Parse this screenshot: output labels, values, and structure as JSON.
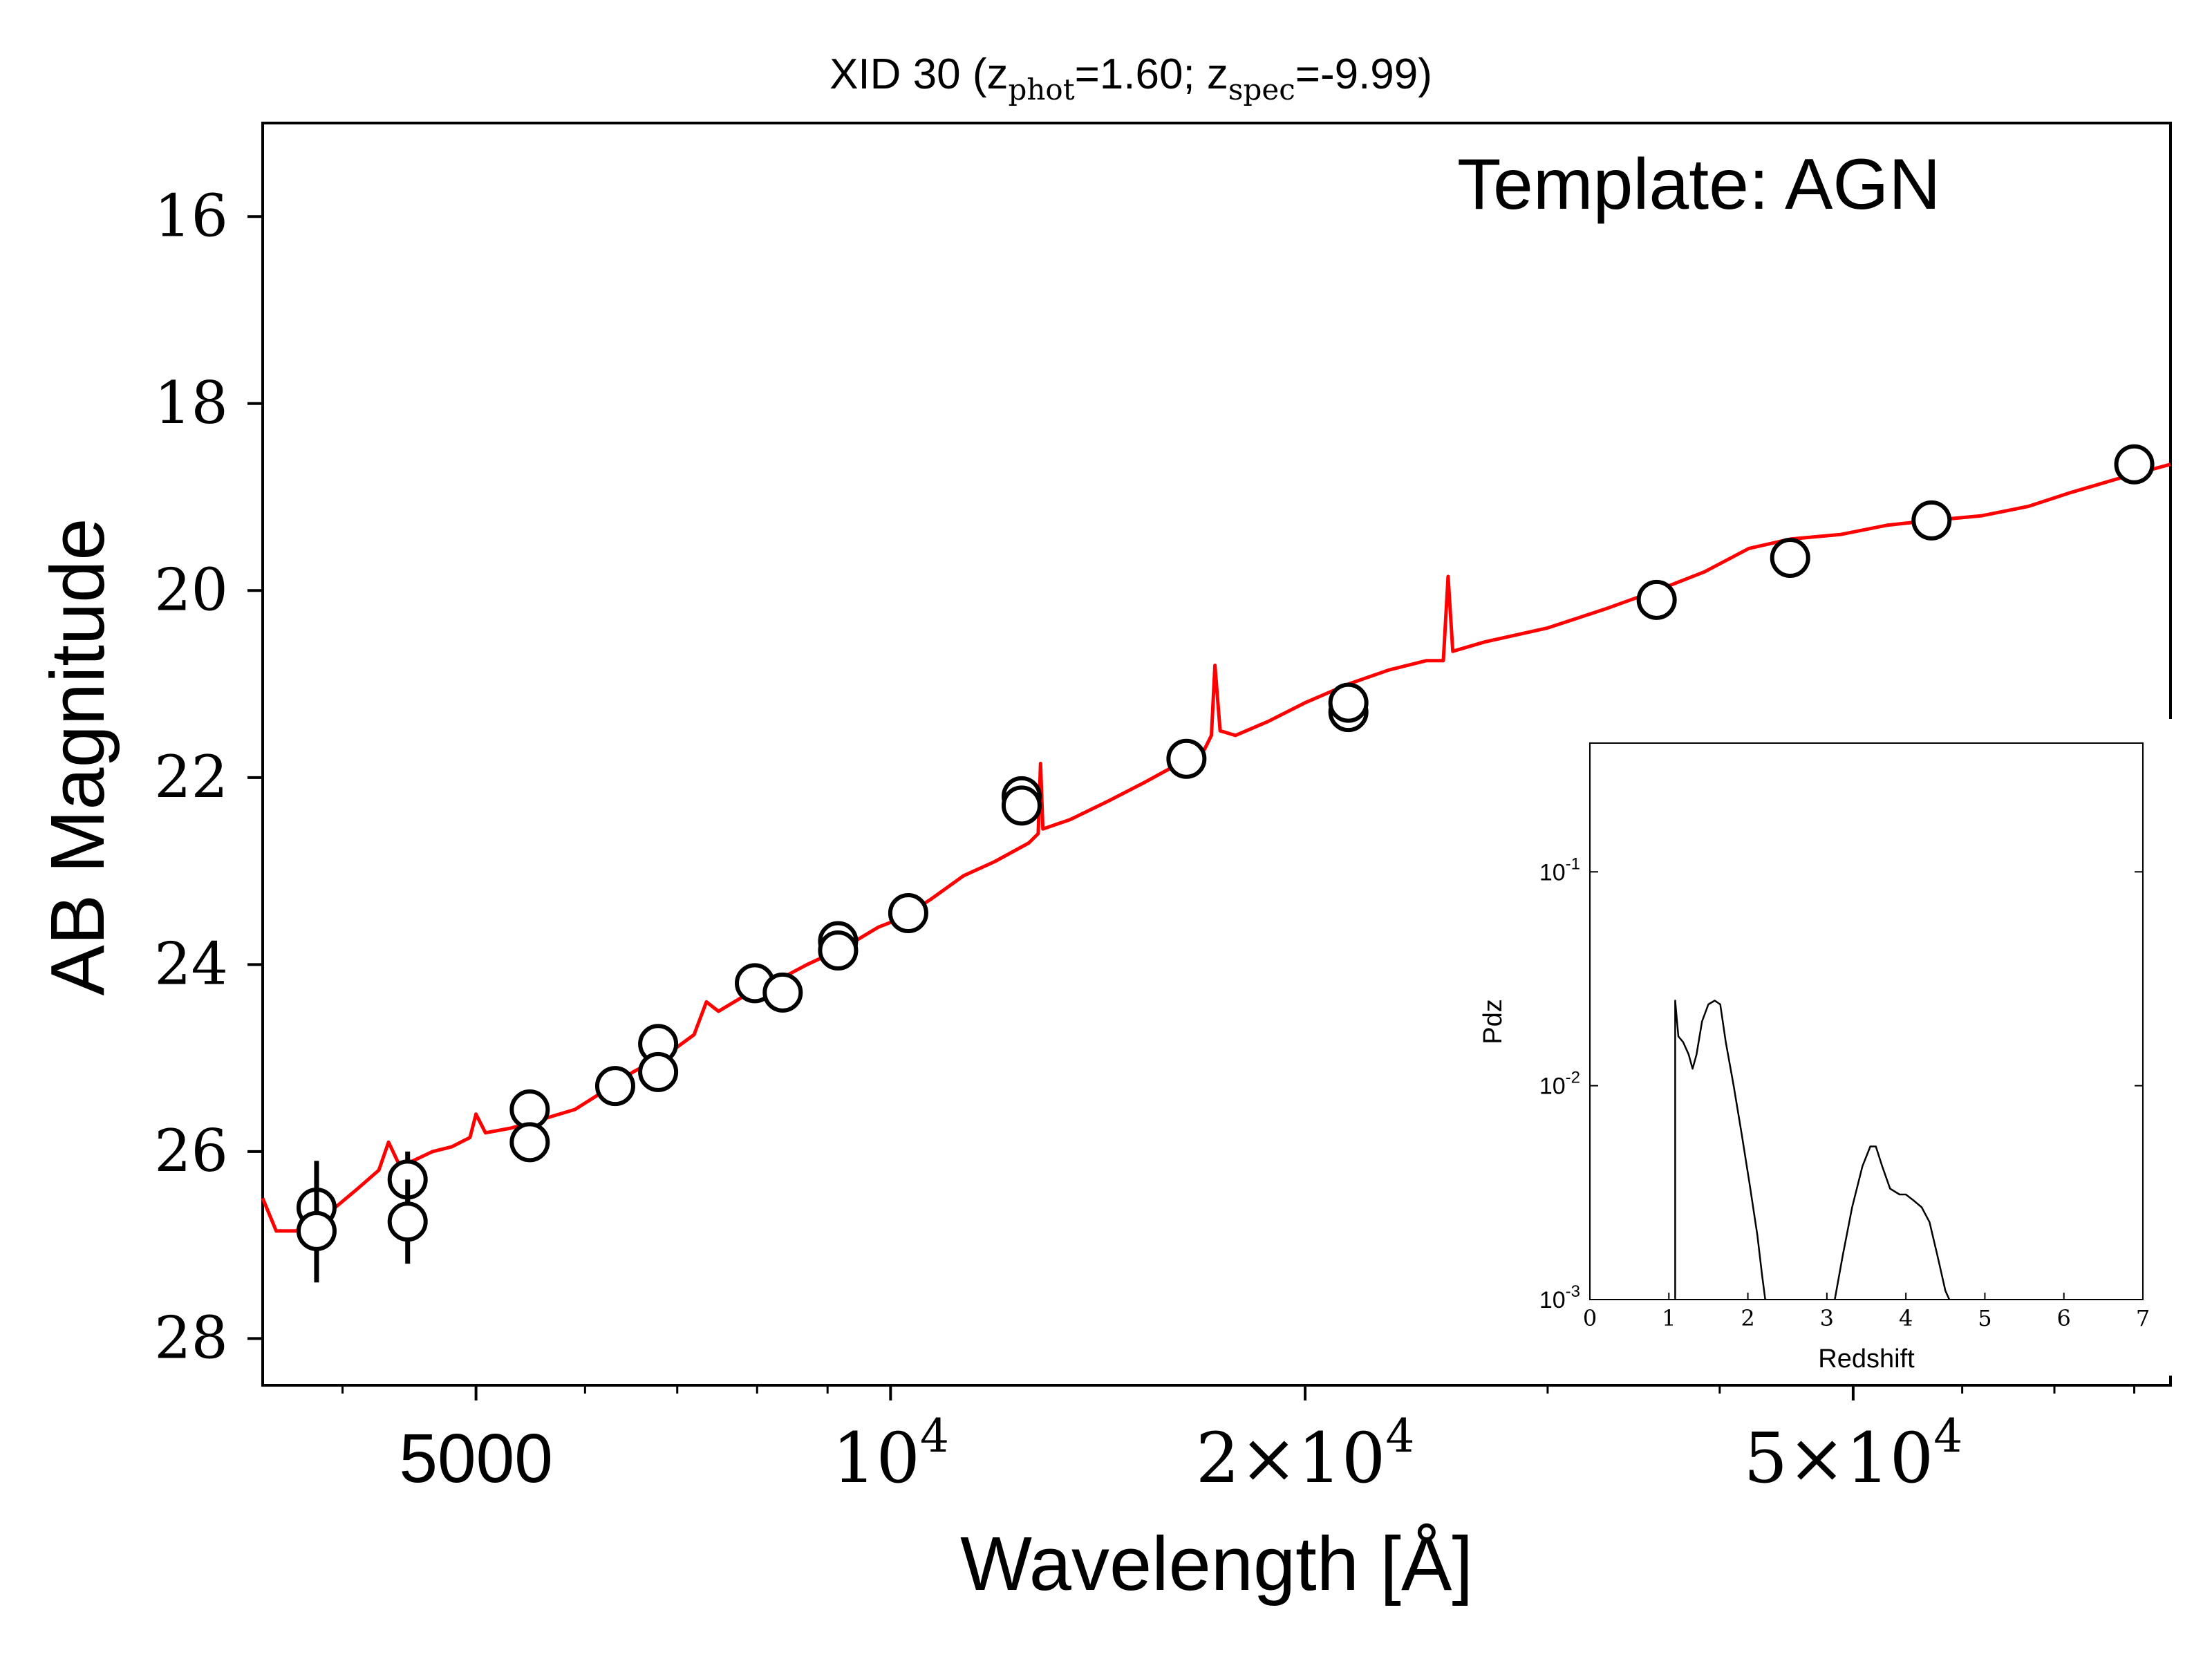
{
  "chart_data": [
    {
      "type": "scatter",
      "title_prefix": "XID 30 (z",
      "title_sub1": "phot",
      "title_mid": "=1.60; z",
      "title_sub2": "spec",
      "title_suffix": "=-9.99)",
      "annotation": "Template: AGN",
      "xlabel": "Wavelength [Å]",
      "ylabel": "AB Magnitude",
      "x_scale": "log",
      "xlim": [
        3500,
        85000
      ],
      "ylim": [
        28.5,
        15
      ],
      "y_inverted": true,
      "yticks": [
        16,
        18,
        20,
        22,
        24,
        26,
        28
      ],
      "ytick_labels": [
        "16",
        "18",
        "20",
        "22",
        "24",
        "26",
        "28"
      ],
      "xticks_major": [
        {
          "value": 5000,
          "label": "5000"
        },
        {
          "value": 10000,
          "label": "10^4"
        },
        {
          "value": 20000,
          "label": "2×10^4"
        },
        {
          "value": 50000,
          "label": "5×10^4"
        }
      ],
      "xticks_minor": [
        4000,
        6000,
        7000,
        8000,
        9000,
        30000,
        40000,
        60000,
        70000,
        80000
      ],
      "series": [
        {
          "kind": "photometry",
          "marker": "open-circle",
          "color": "#000000",
          "points": [
            {
              "x": 3830,
              "y": 26.6,
              "yerr": 0.5
            },
            {
              "x": 3830,
              "y": 26.85,
              "yerr": 0.55
            },
            {
              "x": 4460,
              "y": 26.3,
              "yerr": 0.3
            },
            {
              "x": 4460,
              "y": 26.75,
              "yerr": 0.45
            },
            {
              "x": 5470,
              "y": 25.55,
              "yerr": 0
            },
            {
              "x": 5470,
              "y": 25.9,
              "yerr": 0
            },
            {
              "x": 6310,
              "y": 25.3,
              "yerr": 0
            },
            {
              "x": 6780,
              "y": 24.85,
              "yerr": 0
            },
            {
              "x": 6780,
              "y": 25.15,
              "yerr": 0
            },
            {
              "x": 7970,
              "y": 24.2,
              "yerr": 0
            },
            {
              "x": 8350,
              "y": 24.3,
              "yerr": 0
            },
            {
              "x": 9160,
              "y": 23.75,
              "yerr": 0
            },
            {
              "x": 9160,
              "y": 23.85,
              "yerr": 0
            },
            {
              "x": 10300,
              "y": 23.45,
              "yerr": 0
            },
            {
              "x": 12450,
              "y": 22.2,
              "yerr": 0
            },
            {
              "x": 12450,
              "y": 22.3,
              "yerr": 0
            },
            {
              "x": 16400,
              "y": 21.8,
              "yerr": 0
            },
            {
              "x": 21500,
              "y": 21.3,
              "yerr": 0
            },
            {
              "x": 21500,
              "y": 21.2,
              "yerr": 0
            },
            {
              "x": 36000,
              "y": 20.1,
              "yerr": 0
            },
            {
              "x": 45000,
              "y": 19.65,
              "yerr": 0
            },
            {
              "x": 57000,
              "y": 19.25,
              "yerr": 0
            },
            {
              "x": 80000,
              "y": 18.65,
              "yerr": 0
            }
          ]
        },
        {
          "kind": "template",
          "color": "#ff0000",
          "points": [
            [
              3500,
              26.5
            ],
            [
              3580,
              26.85
            ],
            [
              3700,
              26.85
            ],
            [
              3800,
              26.75
            ],
            [
              3950,
              26.6
            ],
            [
              4100,
              26.4
            ],
            [
              4250,
              26.2
            ],
            [
              4320,
              25.9
            ],
            [
              4400,
              26.15
            ],
            [
              4500,
              26.1
            ],
            [
              4650,
              26.0
            ],
            [
              4800,
              25.95
            ],
            [
              4950,
              25.85
            ],
            [
              5000,
              25.6
            ],
            [
              5080,
              25.8
            ],
            [
              5300,
              25.75
            ],
            [
              5600,
              25.65
            ],
            [
              5900,
              25.55
            ],
            [
              6200,
              25.35
            ],
            [
              6500,
              25.15
            ],
            [
              6900,
              24.95
            ],
            [
              7200,
              24.75
            ],
            [
              7350,
              24.4
            ],
            [
              7500,
              24.5
            ],
            [
              7800,
              24.35
            ],
            [
              8200,
              24.2
            ],
            [
              8700,
              24.0
            ],
            [
              9300,
              23.8
            ],
            [
              9800,
              23.6
            ],
            [
              10200,
              23.5
            ],
            [
              10700,
              23.3
            ],
            [
              11300,
              23.05
            ],
            [
              11900,
              22.9
            ],
            [
              12600,
              22.7
            ],
            [
              12800,
              22.6
            ],
            [
              12850,
              21.85
            ],
            [
              12900,
              22.55
            ],
            [
              13500,
              22.45
            ],
            [
              14400,
              22.25
            ],
            [
              15300,
              22.05
            ],
            [
              16200,
              21.85
            ],
            [
              16900,
              21.7
            ],
            [
              17100,
              21.55
            ],
            [
              17200,
              20.8
            ],
            [
              17350,
              21.5
            ],
            [
              17800,
              21.55
            ],
            [
              18800,
              21.4
            ],
            [
              20000,
              21.2
            ],
            [
              21500,
              21.0
            ],
            [
              23000,
              20.85
            ],
            [
              24500,
              20.75
            ],
            [
              25200,
              20.75
            ],
            [
              25400,
              19.85
            ],
            [
              25600,
              20.65
            ],
            [
              27000,
              20.55
            ],
            [
              30000,
              20.4
            ],
            [
              33000,
              20.2
            ],
            [
              36000,
              20.0
            ],
            [
              39000,
              19.8
            ],
            [
              42000,
              19.55
            ],
            [
              45000,
              19.45
            ],
            [
              49000,
              19.4
            ],
            [
              53000,
              19.3
            ],
            [
              57000,
              19.25
            ],
            [
              62000,
              19.2
            ],
            [
              67000,
              19.1
            ],
            [
              72000,
              18.95
            ],
            [
              78000,
              18.8
            ],
            [
              85000,
              18.65
            ]
          ]
        }
      ]
    },
    {
      "type": "line",
      "role": "inset",
      "xlabel": "Redshift",
      "ylabel": "Pdz",
      "y_scale": "log",
      "xlim": [
        0,
        7
      ],
      "ylim": [
        0.001,
        0.4
      ],
      "xticks": [
        0,
        1,
        2,
        3,
        4,
        5,
        6,
        7
      ],
      "xtick_labels": [
        "0",
        "1",
        "2",
        "3",
        "4",
        "5",
        "6",
        "7"
      ],
      "yticks": [
        {
          "value": 0.1,
          "label": "10^-1"
        },
        {
          "value": 0.01,
          "label": "10^-2"
        },
        {
          "value": 0.001,
          "label": "10^-3"
        }
      ],
      "color": "#000000",
      "segments": [
        [
          [
            1.08,
            0.001
          ],
          [
            1.08,
            0.025
          ],
          [
            1.12,
            0.017
          ],
          [
            1.18,
            0.016
          ],
          [
            1.25,
            0.014
          ],
          [
            1.3,
            0.012
          ],
          [
            1.35,
            0.014
          ],
          [
            1.42,
            0.02
          ],
          [
            1.5,
            0.024
          ],
          [
            1.58,
            0.025
          ],
          [
            1.65,
            0.024
          ],
          [
            1.72,
            0.016
          ],
          [
            1.82,
            0.01
          ],
          [
            1.92,
            0.006
          ],
          [
            2.02,
            0.0035
          ],
          [
            2.12,
            0.002
          ],
          [
            2.18,
            0.0013
          ],
          [
            2.22,
            0.001
          ]
        ],
        [
          [
            3.1,
            0.001
          ],
          [
            3.2,
            0.0016
          ],
          [
            3.32,
            0.0027
          ],
          [
            3.45,
            0.0042
          ],
          [
            3.55,
            0.0052
          ],
          [
            3.62,
            0.0052
          ],
          [
            3.7,
            0.0042
          ],
          [
            3.8,
            0.0033
          ],
          [
            3.92,
            0.0031
          ],
          [
            4.0,
            0.0031
          ],
          [
            4.1,
            0.0029
          ],
          [
            4.2,
            0.0027
          ],
          [
            4.3,
            0.0023
          ],
          [
            4.4,
            0.0016
          ],
          [
            4.5,
            0.0011
          ],
          [
            4.55,
            0.001
          ]
        ]
      ]
    }
  ]
}
